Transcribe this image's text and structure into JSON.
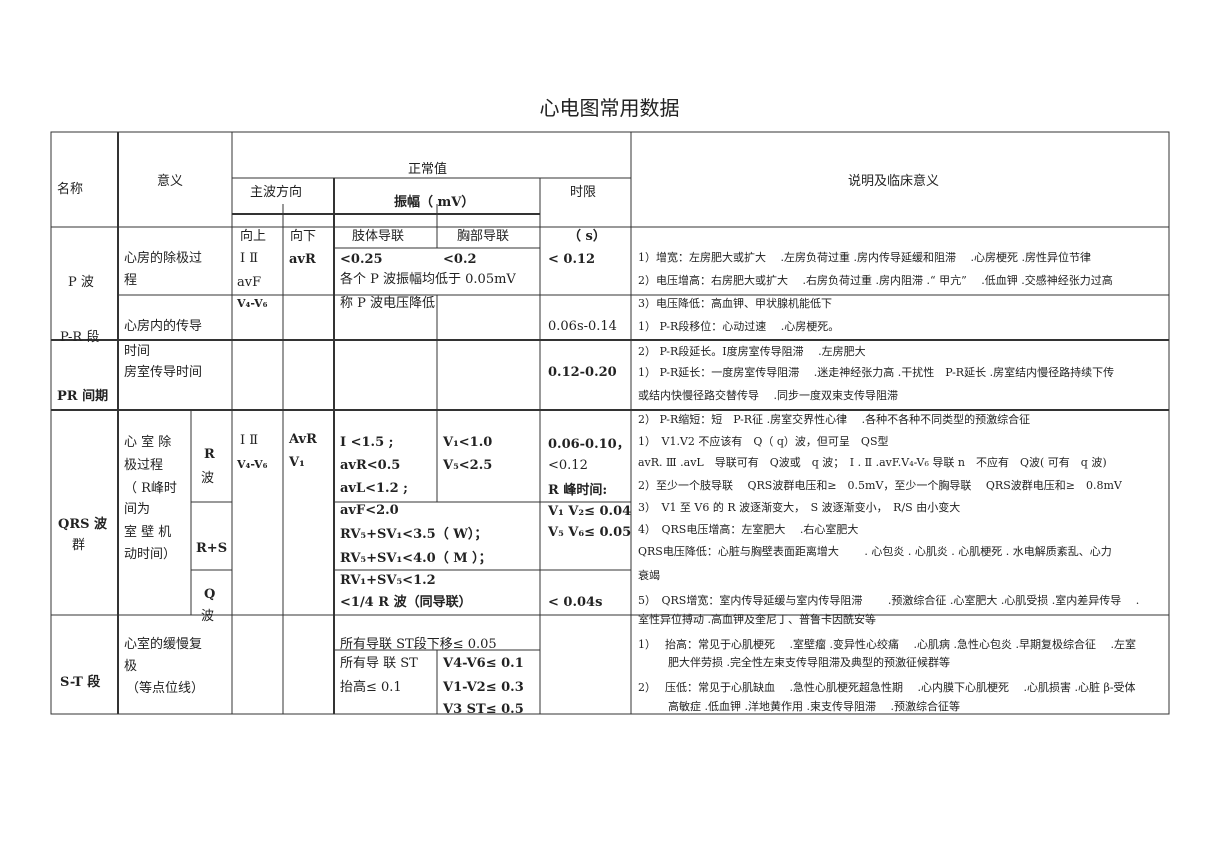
{
  "title": "心电图常用数据",
  "header": {
    "name": "名称",
    "meaning": "意义",
    "normal": "正常值",
    "direction": "主波方向",
    "amplitude": "振幅（ mV）",
    "duration": "时限",
    "description": "说明及临床意义",
    "up": "向上",
    "down": "向下",
    "limb": "肢体导联",
    "chest": "胸部导联",
    "unit": "（ s）"
  },
  "p_wave": {
    "name": "P 波",
    "meaning": [
      "心房的除极过",
      "程"
    ],
    "up": [
      "Ⅰ  Ⅱ",
      "avF"
    ],
    "down": "avR",
    "limb": "<0.25",
    "chest": "<0.2",
    "duration": "< 0.12",
    "note": "各个 P 波振幅均低于   0.05mV"
  },
  "pr_segment": {
    "name": "P-R 段",
    "up": "V₄-V₆",
    "note": "称 P 波电压降低",
    "meaning": "心房内的传导",
    "duration": "0.06s-0.14"
  },
  "pr_interval": {
    "name": "PR 间期",
    "meaning": [
      "时间",
      "房室传导时间"
    ],
    "duration": "0.12-0.20"
  },
  "qrs": {
    "name": [
      "QRS 波",
      "群"
    ],
    "meaning": [
      "心 室 除",
      "极过程",
      "（ R峰时",
      "间为",
      "室 壁 机",
      "动时间）"
    ],
    "r_label": [
      "R",
      "波"
    ],
    "rs_label": "R+S",
    "q_label": [
      "Q",
      "波"
    ],
    "up": [
      "Ⅰ Ⅱ",
      "V₄-V₆"
    ],
    "down": [
      "AvR",
      "V₁"
    ],
    "limb": [
      "Ⅰ    <1.5    ;",
      "avR<0.5",
      "avL<1.2      ;"
    ],
    "chest": [
      "V₁<1.0",
      "V₅<2.5"
    ],
    "rs": [
      "avF<2.0",
      "RV₅+SV₁<3.5（ W）；",
      "RV₅+SV₁<4.0（ M ）；"
    ],
    "q": [
      "RV₁+SV₅<1.2",
      "<1/4 R 波（同导联）"
    ],
    "duration": [
      "0.06-0.10，",
      "<0.12",
      "R 峰时间:",
      "V₁ V₂≤ 0.04",
      "V₅ V₆≤ 0.05"
    ],
    "q_duration": "< 0.04s"
  },
  "st": {
    "name": "S-T 段",
    "meaning": [
      "心室的缓慢复",
      "极",
      "（等点位线）"
    ],
    "depression": "所有导联   ST段下移≤  0.05",
    "elevation": [
      "所有导  联   ST",
      "抬高≤  0.1"
    ],
    "chest": [
      "V4-V6≤ 0.1",
      "V1-V2≤ 0.3",
      "V3 ST≤ 0.5"
    ]
  },
  "desc": {
    "lines": [
      "1）增宽：左房肥大或扩大　 .左房负荷过重 .房内传导延缓和阻滞　 .心房梗死 .房性异位节律",
      "2）电压增高：右房肥大或扩大　 .右房负荷过重 .房内阻滞 .“ 甲亢”　 .低血钾 .交感神经张力过高",
      "3）电压降低：高血钾、甲状腺机能低下",
      "1） P-R段移位：心动过速　 .心房梗死。",
      "2） P-R段延长。Ⅰ度房室传导阻滞　 .左房肥大",
      "1） P-R延长：一度房室传导阻滞　 .迷走神经张力高 .干扰性　P-R延长 .房室结内慢径路持续下传",
      "或结内快慢径路交替传导　 .同步一度双束支传导阻滞",
      "2） P-R缩短：短　P-R征 .房室交界性心律　 .各种不各种不同类型的预激综合征",
      "1）　V1.V2 不应该有　Q（ q）波，但可呈　QS型",
      "avR. Ⅲ .avL　导联可有　Q波或　q 波；　Ⅰ . Ⅱ .avF.V₄-V₆ 导联 n　不应有　Q波( 可有　q 波)",
      "2）至少一个肢导联　 QRS波群电压和≥　0.5mV，至少一个胸导联　 QRS波群电压和≥　0.8mV",
      "3）　V1 至 V6 的 R 波逐渐变大，　S 波逐渐变小，　R/S 由小变大",
      "4）　QRS电压增高：左室肥大　 .右心室肥大",
      "QRS电压降低：心脏与胸壁表面距离增大　　 . 心包炎 . 心肌炎 . 心肌梗死 . 水电解质紊乱、心力",
      "衰竭",
      "5）　QRS增宽：室内传导延缓与室内传导阻滞　　 .预激综合征 .心室肥大 .心肌受损 .室内差异传导　 .",
      "室性异位搏动 .高血钾及奎尼丁、普鲁卡因酰安等",
      "1）　 抬高：常见于心肌梗死　 .室壁瘤 .变异性心绞痛　 .心肌病 .急性心包炎 .早期复极综合征　 .左室",
      "肥大伴劳损 .完全性左束支传导阻滞及典型的预激征候群等",
      "2）　 压低：常见于心肌缺血　 .急性心肌梗死超急性期　 .心内膜下心肌梗死　 .心肌损害 .心脏 β-受体",
      "高敏症 .低血钾 .洋地黄作用 .束支传导阻滞　 .预激综合征等"
    ]
  }
}
